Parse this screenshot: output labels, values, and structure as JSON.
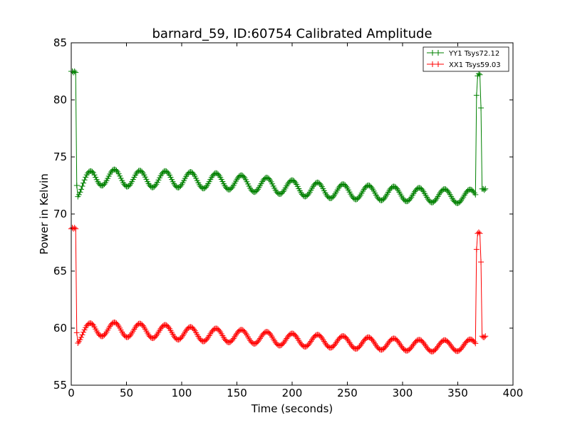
{
  "chart_data": {
    "type": "line",
    "title": "barnard_59, ID:60754 Calibrated Amplitude",
    "xlabel": "Time (seconds)",
    "ylabel": "Power in Kelvin",
    "xlim": [
      0,
      400
    ],
    "ylim": [
      55,
      85
    ],
    "xticks": [
      "0",
      "50",
      "100",
      "150",
      "200",
      "250",
      "300",
      "350",
      "400"
    ],
    "yticks": [
      "55",
      "60",
      "65",
      "70",
      "75",
      "80",
      "85"
    ],
    "grid": false,
    "legend_position": "top-right",
    "series": [
      {
        "name": "YY1 Tsys72.12",
        "color": "#008000",
        "marker": "+",
        "envelope": [
          [
            5,
            72.5
          ],
          [
            20,
            73.6
          ],
          [
            45,
            73.5
          ],
          [
            70,
            73.4
          ],
          [
            90,
            73.4
          ],
          [
            115,
            73.3
          ],
          [
            140,
            73.2
          ],
          [
            160,
            73.0
          ],
          [
            185,
            72.8
          ],
          [
            205,
            72.6
          ],
          [
            230,
            72.4
          ],
          [
            250,
            72.3
          ],
          [
            275,
            72.2
          ],
          [
            300,
            72.1
          ],
          [
            320,
            72.0
          ],
          [
            345,
            71.9
          ],
          [
            365,
            71.9
          ]
        ],
        "oscillation": {
          "period": 23,
          "amplitude": 0.75,
          "decay": 0.2
        },
        "spikes": [
          {
            "x": [
              0,
              1,
              2,
              3,
              4,
              5
            ],
            "y": [
              82.5,
              82.5,
              82.4,
              82.5,
              82.4,
              72.5
            ]
          },
          {
            "x": [
              367,
              368,
              369,
              370,
              371
            ],
            "y": [
              80.4,
              82.1,
              82.3,
              82.2,
              79.3
            ]
          }
        ],
        "tail": {
          "x": [
            372,
            373,
            374,
            375
          ],
          "y": [
            72.2,
            72.2,
            72.1,
            72.2
          ]
        }
      },
      {
        "name": "XX1 Tsys59.03",
        "color": "#ff0000",
        "marker": "+",
        "envelope": [
          [
            5,
            59.6
          ],
          [
            20,
            60.3
          ],
          [
            45,
            60.2
          ],
          [
            70,
            60.1
          ],
          [
            90,
            60.0
          ],
          [
            115,
            59.8
          ],
          [
            140,
            59.7
          ],
          [
            160,
            59.6
          ],
          [
            185,
            59.4
          ],
          [
            205,
            59.3
          ],
          [
            230,
            59.2
          ],
          [
            250,
            59.1
          ],
          [
            275,
            59.0
          ],
          [
            300,
            58.9
          ],
          [
            320,
            58.8
          ],
          [
            345,
            58.8
          ],
          [
            365,
            58.9
          ]
        ],
        "oscillation": {
          "period": 23,
          "amplitude": 0.65,
          "decay": 0.25
        },
        "spikes": [
          {
            "x": [
              0,
              1,
              2,
              3,
              4,
              5
            ],
            "y": [
              68.7,
              68.8,
              68.7,
              68.8,
              68.7,
              59.6
            ]
          },
          {
            "x": [
              367,
              368,
              369,
              370,
              371
            ],
            "y": [
              66.9,
              68.3,
              68.4,
              68.3,
              65.8
            ]
          }
        ],
        "tail": {
          "x": [
            372,
            373,
            374,
            375
          ],
          "y": [
            59.3,
            59.2,
            59.2,
            59.3
          ]
        }
      }
    ]
  }
}
